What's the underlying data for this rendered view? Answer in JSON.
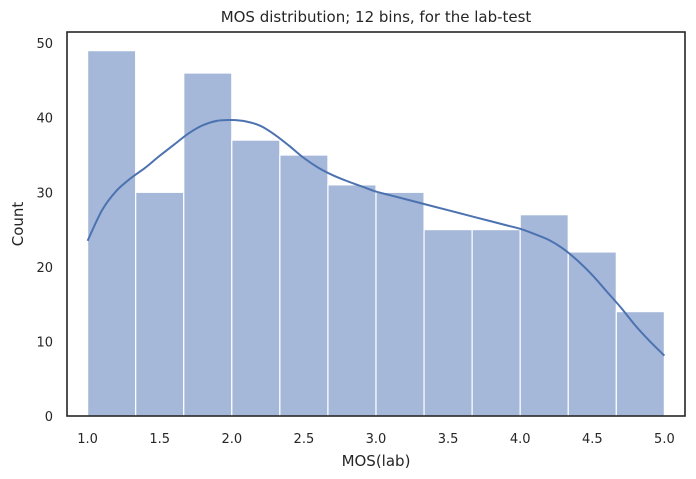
{
  "chart_data": {
    "type": "bar",
    "title": "MOS distribution; 12 bins, for the lab-test",
    "xlabel": "MOS(lab)",
    "ylabel": "Count",
    "bins": {
      "start": 1.0,
      "end": 5.0,
      "count": 12,
      "edges": [
        1.0,
        1.3333,
        1.6667,
        2.0,
        2.3333,
        2.6667,
        3.0,
        3.3333,
        3.6667,
        4.0,
        4.3333,
        4.6667,
        5.0
      ],
      "values": [
        49,
        30,
        46,
        37,
        35,
        31,
        30,
        25,
        25,
        27,
        22,
        14
      ]
    },
    "kde": {
      "x": [
        1.0,
        1.1,
        1.2,
        1.3,
        1.4,
        1.5,
        1.6,
        1.7,
        1.8,
        1.9,
        2.0,
        2.1,
        2.2,
        2.3,
        2.4,
        2.5,
        2.6,
        2.7,
        2.8,
        2.9,
        3.0,
        3.1,
        3.2,
        3.3,
        3.4,
        3.5,
        3.6,
        3.7,
        3.8,
        3.9,
        4.0,
        4.1,
        4.2,
        4.3,
        4.4,
        4.5,
        4.6,
        4.7,
        4.8,
        4.9,
        5.0
      ],
      "y": [
        23.5,
        27.6,
        30.2,
        31.9,
        33.3,
        34.9,
        36.4,
        37.9,
        39.0,
        39.6,
        39.7,
        39.5,
        38.9,
        37.7,
        36.2,
        34.6,
        33.3,
        32.3,
        31.5,
        30.8,
        30.1,
        29.6,
        29.1,
        28.6,
        28.1,
        27.6,
        27.1,
        26.6,
        26.1,
        25.6,
        25.1,
        24.4,
        23.6,
        22.4,
        20.8,
        18.9,
        16.7,
        14.5,
        12.1,
        10.0,
        8.1
      ]
    },
    "xlim": [
      0.8571,
      5.1429
    ],
    "ylim": [
      0,
      51.5
    ],
    "xticks": [
      "1.0",
      "1.5",
      "2.0",
      "2.5",
      "3.0",
      "3.5",
      "4.0",
      "4.5",
      "5.0"
    ],
    "xtick_values": [
      1.0,
      1.5,
      2.0,
      2.5,
      3.0,
      3.5,
      4.0,
      4.5,
      5.0
    ],
    "yticks": [
      "0",
      "10",
      "20",
      "30",
      "40",
      "50"
    ],
    "ytick_values": [
      0,
      10,
      20,
      30,
      40,
      50
    ],
    "grid": false,
    "bar_color": "#a5b8d9",
    "bar_edge_color": "#ffffff",
    "line_color": "#4c72b0",
    "axes_color": "#262626"
  }
}
